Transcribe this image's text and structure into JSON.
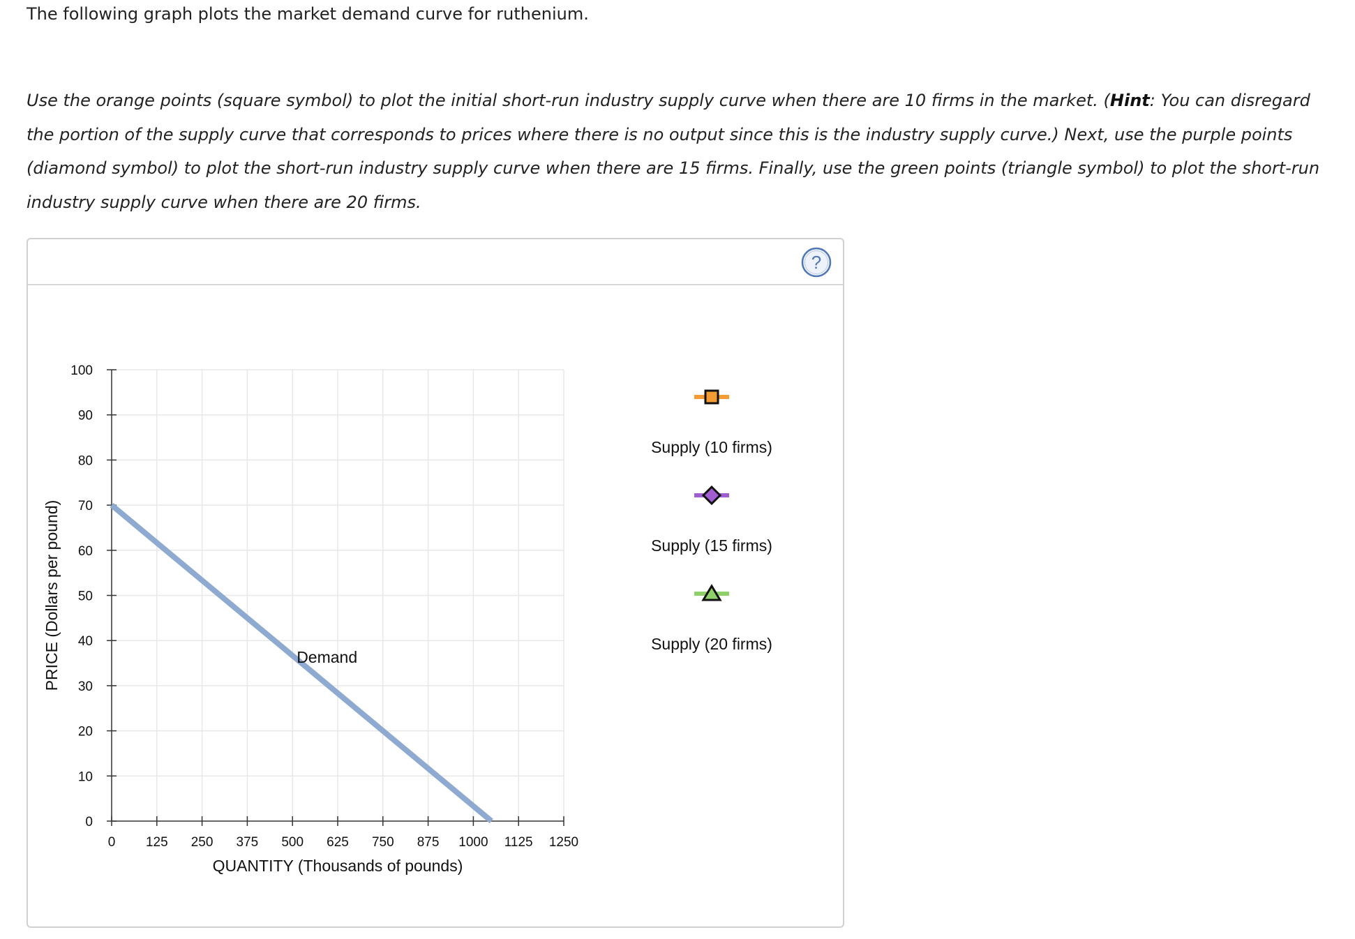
{
  "intro": "The following graph plots the market demand curve for ruthenium.",
  "instructions": {
    "t1": "Use the orange points (square symbol) to plot the initial short-run industry supply curve when there are 10 firms in the market. (",
    "hint": "Hint",
    "t2": ": You can disregard the portion of the supply curve that corresponds to prices where there is no output since this is the industry supply curve.) Next, use the purple points (diamond symbol) to plot the short-run industry supply curve when there are 15 firms. Finally, use the green points (triangle symbol) to plot the short-run industry supply curve when there are 20 firms."
  },
  "help_icon": "question-mark-icon",
  "colors": {
    "demand": "#8eaad0",
    "grid": "#e8e8e8",
    "supply10": "#f39c34",
    "supply15": "#a05ed2",
    "supply20": "#8fd06a",
    "help": "#4f76b5"
  },
  "chart_data": {
    "type": "line",
    "xlabel": "QUANTITY (Thousands of pounds)",
    "ylabel": "PRICE (Dollars per pound)",
    "xlim": [
      0,
      1250
    ],
    "ylim": [
      0,
      100
    ],
    "x_ticks": [
      0,
      125,
      250,
      375,
      500,
      625,
      750,
      875,
      1000,
      1125,
      1250
    ],
    "y_ticks": [
      0,
      10,
      20,
      30,
      40,
      50,
      60,
      70,
      80,
      90,
      100
    ],
    "grid": true,
    "series": [
      {
        "name": "Demand",
        "x": [
          0,
          1050
        ],
        "y": [
          70,
          0
        ]
      }
    ],
    "annotations": [
      {
        "text": "Demand",
        "x": 500,
        "y": 36
      }
    ],
    "legend": {
      "placement": "right",
      "items": [
        {
          "label": "Supply (10 firms)",
          "marker": "square",
          "color": "#f39c34"
        },
        {
          "label": "Supply (15 firms)",
          "marker": "diamond",
          "color": "#a05ed2"
        },
        {
          "label": "Supply (20 firms)",
          "marker": "triangle",
          "color": "#8fd06a"
        }
      ]
    }
  }
}
